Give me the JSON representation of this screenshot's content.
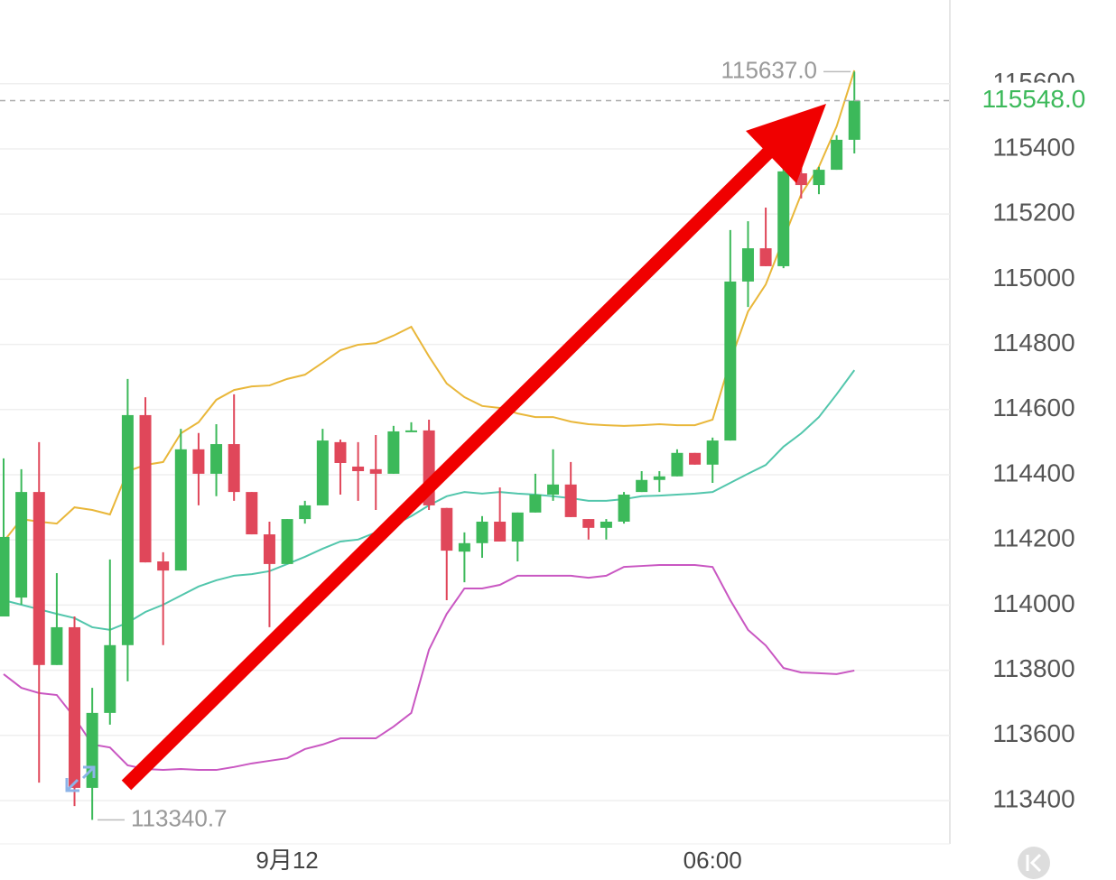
{
  "chart_data": {
    "type": "candlestick",
    "categories": [
      null,
      null,
      null,
      null,
      null,
      null,
      null,
      null,
      null,
      null,
      null,
      null,
      null,
      null,
      null,
      null,
      "9月12",
      null,
      null,
      null,
      null,
      null,
      null,
      null,
      null,
      null,
      null,
      null,
      null,
      null,
      null,
      null,
      null,
      null,
      null,
      null,
      null,
      null,
      null,
      null,
      "06:00",
      null,
      null,
      null,
      null,
      null,
      null,
      null,
      null
    ],
    "open": [
      113965,
      114023,
      114347,
      113816,
      113932,
      113439,
      113669,
      113877,
      114583,
      114134,
      114106,
      114478,
      114403,
      114494,
      114347,
      114217,
      114126,
      114264,
      114306,
      114500,
      114425,
      114417,
      114403,
      114533,
      114536,
      114298,
      114164,
      114190,
      114256,
      114195,
      114284,
      114339,
      114370,
      114264,
      114237,
      114256,
      114347,
      114384,
      114395,
      114467,
      114431,
      114505,
      114993,
      115095,
      115040,
      115325,
      115289,
      115336,
      115428
    ],
    "high": [
      114450,
      114417,
      114500,
      114098,
      113965,
      113746,
      114140,
      114694,
      114638,
      114162,
      114541,
      114528,
      114555,
      114647,
      114347,
      114256,
      114264,
      114320,
      114541,
      114508,
      114500,
      114522,
      114550,
      114561,
      114569,
      114298,
      114223,
      114273,
      114361,
      114284,
      114403,
      114478,
      114439,
      114264,
      114264,
      114347,
      114411,
      114411,
      114478,
      114467,
      114514,
      115151,
      115178,
      115220,
      115345,
      115345,
      115345,
      115442,
      115637
    ],
    "low": [
      113965,
      114001,
      113455,
      113816,
      113383,
      113340.7,
      113633,
      113766,
      114131,
      113877,
      114106,
      114306,
      114334,
      114320,
      114217,
      113932,
      114126,
      114250,
      114306,
      114339,
      114320,
      114292,
      114403,
      114533,
      114292,
      114015,
      114070,
      114145,
      114195,
      114134,
      114284,
      114320,
      114270,
      114201,
      114201,
      114250,
      114347,
      114347,
      114395,
      114431,
      114375,
      114505,
      114915,
      115040,
      115034,
      115248,
      115261,
      115336,
      115386
    ],
    "close": [
      114209,
      114347,
      113816,
      113932,
      113439,
      113669,
      113877,
      114583,
      114131,
      114106,
      114478,
      114403,
      114494,
      114347,
      114217,
      114126,
      114264,
      114306,
      114505,
      114436,
      114411,
      114403,
      114533,
      114536,
      114306,
      114167,
      114190,
      114256,
      114195,
      114284,
      114339,
      114370,
      114270,
      114237,
      114256,
      114339,
      114384,
      114395,
      114467,
      114431,
      114505,
      114993,
      115095,
      115040,
      115331,
      115289,
      115336,
      115428,
      115548
    ],
    "up_color": "#3cb95a",
    "down_color": "#e0475a",
    "bands": [
      {
        "color": "#e9b73a",
        "values": [
          114195,
          114264,
          114256,
          114250,
          114300,
          114292,
          114278,
          114411,
          114430,
          114439,
          114527,
          114561,
          114630,
          114660,
          114671,
          114674,
          114694,
          114707,
          114744,
          114782,
          114799,
          114804,
          114827,
          114854,
          114763,
          114680,
          114638,
          114611,
          114605,
          114588,
          114577,
          114577,
          114563,
          114555,
          114552,
          114550,
          114552,
          114555,
          114552,
          114552,
          114569,
          114749,
          114901,
          114984,
          115123,
          115261,
          115345,
          115469,
          115641
        ]
      },
      {
        "color": "#52c6ac",
        "values": [
          114015,
          114001,
          113987,
          113973,
          113960,
          113932,
          113924,
          113946,
          113979,
          114001,
          114029,
          114057,
          114076,
          114090,
          114095,
          114104,
          114126,
          114148,
          114173,
          114195,
          114201,
          114223,
          114245,
          114273,
          114306,
          114334,
          114347,
          114342,
          114347,
          114342,
          114339,
          114334,
          114328,
          114320,
          114320,
          114325,
          114334,
          114336,
          114339,
          114342,
          114347,
          114375,
          114403,
          114430,
          114486,
          114527,
          114577,
          114647,
          114721
        ]
      },
      {
        "color": "#c957c2",
        "values": [
          113788,
          113746,
          113730,
          113724,
          113655,
          113572,
          113563,
          113508,
          113497,
          113494,
          113497,
          113494,
          113494,
          113503,
          113514,
          113522,
          113530,
          113558,
          113572,
          113591,
          113591,
          113591,
          113627,
          113669,
          113863,
          113973,
          114051,
          114051,
          114062,
          114090,
          114090,
          114090,
          114090,
          114084,
          114090,
          114117,
          114120,
          114123,
          114123,
          114123,
          114117,
          114015,
          113924,
          113876,
          113807,
          113793,
          113791,
          113788,
          113799
        ]
      }
    ],
    "ylim": [
      113267,
      115857
    ],
    "yticks": [
      113400,
      113600,
      113800,
      114000,
      114200,
      114400,
      114600,
      114800,
      115000,
      115200,
      115400,
      115600
    ],
    "grid": true,
    "last_price": {
      "value": 115548,
      "label": "115548.0"
    },
    "max_label": {
      "value": 115637,
      "label": "115637.0"
    },
    "min_label": {
      "value": 113340.7,
      "label": "113340.7"
    }
  }
}
